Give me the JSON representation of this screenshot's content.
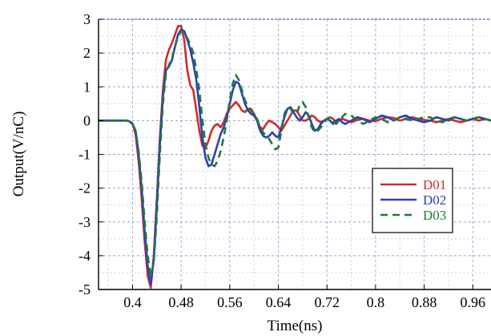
{
  "chart_data": {
    "type": "line",
    "title": "",
    "xlabel": "Time(ns)",
    "ylabel": "Output(V/nC)",
    "xlim": [
      0.344,
      0.99
    ],
    "ylim": [
      -5,
      3
    ],
    "x_ticks": [
      0.4,
      0.48,
      0.56,
      0.64,
      0.72,
      0.8,
      0.88,
      0.96
    ],
    "x_tick_labels": [
      "0.4",
      "0.48",
      "0.56",
      "0.64",
      "0.72",
      "0.8",
      "0.88",
      "0.96"
    ],
    "y_ticks": [
      3,
      2,
      1,
      0,
      -1,
      -2,
      -3,
      -4,
      -5
    ],
    "y_tick_labels": [
      "3",
      "2",
      "1",
      "0",
      "-1",
      "-2",
      "-3",
      "-4",
      "-5"
    ],
    "grid": true,
    "legend_position": "lower-right",
    "series": [
      {
        "name": "D01",
        "color": "#d42a2a",
        "dash": "solid",
        "x": [
          0.344,
          0.38,
          0.39,
          0.395,
          0.4,
          0.405,
          0.41,
          0.415,
          0.42,
          0.425,
          0.43,
          0.435,
          0.44,
          0.445,
          0.45,
          0.455,
          0.46,
          0.465,
          0.47,
          0.475,
          0.48,
          0.485,
          0.49,
          0.495,
          0.5,
          0.505,
          0.51,
          0.515,
          0.52,
          0.525,
          0.53,
          0.535,
          0.54,
          0.545,
          0.55,
          0.555,
          0.56,
          0.565,
          0.57,
          0.575,
          0.58,
          0.585,
          0.59,
          0.595,
          0.6,
          0.605,
          0.61,
          0.615,
          0.62,
          0.625,
          0.63,
          0.635,
          0.64,
          0.645,
          0.65,
          0.655,
          0.66,
          0.665,
          0.67,
          0.675,
          0.68,
          0.685,
          0.69,
          0.695,
          0.7,
          0.705,
          0.71,
          0.715,
          0.72,
          0.725,
          0.73,
          0.735,
          0.74,
          0.745,
          0.75,
          0.76,
          0.77,
          0.78,
          0.79,
          0.8,
          0.81,
          0.82,
          0.83,
          0.84,
          0.85,
          0.86,
          0.87,
          0.88,
          0.89,
          0.9,
          0.91,
          0.92,
          0.93,
          0.94,
          0.95,
          0.96,
          0.97,
          0.98,
          0.99
        ],
        "y": [
          0,
          0,
          0,
          -0.02,
          -0.1,
          -0.4,
          -1.2,
          -2.3,
          -3.6,
          -4.6,
          -4.95,
          -4.0,
          -2.3,
          -0.5,
          0.9,
          1.8,
          2.1,
          2.3,
          2.55,
          2.8,
          2.8,
          2.4,
          1.5,
          1.05,
          0.9,
          0.3,
          -0.3,
          -0.75,
          -0.8,
          -0.6,
          -0.3,
          -0.15,
          -0.1,
          -0.2,
          -0.05,
          0.2,
          0.35,
          0.45,
          0.55,
          0.45,
          0.3,
          0.25,
          0.35,
          0.35,
          0.2,
          0.0,
          -0.2,
          -0.25,
          -0.1,
          0.0,
          -0.05,
          -0.1,
          -0.2,
          -0.3,
          -0.15,
          0.0,
          0.15,
          0.3,
          0.3,
          0.15,
          0.0,
          0.0,
          0.05,
          0.15,
          0.1,
          0.0,
          -0.05,
          0.0,
          0.05,
          0.1,
          0.05,
          -0.05,
          0.0,
          0.05,
          0.02,
          -0.05,
          0.02,
          0.05,
          0.0,
          -0.02,
          0.05,
          0.1,
          0.08,
          0.0,
          0.05,
          0.1,
          0.05,
          0.02,
          0.0,
          -0.05,
          0.0,
          0.05,
          0.0,
          -0.05,
          0.0,
          0.05,
          0.0,
          0.05,
          0.0
        ]
      },
      {
        "name": "D02",
        "color": "#2a42b4",
        "dash": "solid",
        "x": [
          0.344,
          0.38,
          0.39,
          0.395,
          0.4,
          0.405,
          0.41,
          0.415,
          0.42,
          0.425,
          0.43,
          0.435,
          0.44,
          0.445,
          0.45,
          0.455,
          0.46,
          0.465,
          0.47,
          0.475,
          0.48,
          0.485,
          0.49,
          0.495,
          0.5,
          0.505,
          0.51,
          0.515,
          0.52,
          0.525,
          0.53,
          0.535,
          0.54,
          0.545,
          0.55,
          0.555,
          0.56,
          0.565,
          0.57,
          0.575,
          0.58,
          0.585,
          0.59,
          0.595,
          0.6,
          0.605,
          0.61,
          0.615,
          0.62,
          0.625,
          0.63,
          0.635,
          0.64,
          0.645,
          0.65,
          0.655,
          0.66,
          0.665,
          0.67,
          0.675,
          0.68,
          0.685,
          0.69,
          0.695,
          0.7,
          0.705,
          0.71,
          0.715,
          0.72,
          0.725,
          0.73,
          0.735,
          0.74,
          0.745,
          0.75,
          0.76,
          0.77,
          0.78,
          0.79,
          0.8,
          0.81,
          0.82,
          0.83,
          0.84,
          0.85,
          0.86,
          0.87,
          0.88,
          0.89,
          0.9,
          0.91,
          0.92,
          0.93,
          0.94,
          0.95,
          0.96,
          0.97,
          0.98,
          0.99
        ],
        "y": [
          0,
          0,
          0,
          -0.02,
          -0.1,
          -0.3,
          -1.0,
          -2.0,
          -3.3,
          -4.3,
          -4.85,
          -4.1,
          -2.5,
          -0.7,
          0.7,
          1.5,
          1.6,
          1.8,
          2.2,
          2.55,
          2.7,
          2.65,
          2.4,
          2.1,
          1.7,
          1.2,
          0.4,
          -0.5,
          -1.1,
          -1.35,
          -1.3,
          -1.0,
          -0.7,
          -0.4,
          -0.2,
          0.1,
          0.5,
          0.9,
          1.15,
          1.1,
          0.8,
          0.5,
          0.3,
          0.2,
          0.15,
          0.0,
          -0.3,
          -0.45,
          -0.5,
          -0.45,
          -0.35,
          -0.45,
          -0.5,
          -0.2,
          0.1,
          0.35,
          0.4,
          0.25,
          0.1,
          0.0,
          0.1,
          0.25,
          0.15,
          -0.1,
          -0.3,
          -0.25,
          -0.1,
          0.0,
          0.05,
          0.0,
          -0.1,
          0.0,
          0.05,
          -0.05,
          -0.1,
          0.0,
          0.1,
          0.05,
          -0.05,
          0.05,
          0.15,
          0.1,
          0.0,
          0.1,
          0.15,
          0.05,
          0.0,
          -0.05,
          0.0,
          0.1,
          0.05,
          0.0,
          0.1,
          0.05,
          0.0,
          0.05,
          0.1,
          0.05,
          0.0
        ]
      },
      {
        "name": "D03",
        "color": "#1f7a3a",
        "dash": "dashed",
        "x": [
          0.344,
          0.38,
          0.39,
          0.395,
          0.4,
          0.405,
          0.41,
          0.415,
          0.42,
          0.425,
          0.43,
          0.435,
          0.44,
          0.445,
          0.45,
          0.455,
          0.46,
          0.465,
          0.47,
          0.475,
          0.48,
          0.485,
          0.49,
          0.495,
          0.5,
          0.505,
          0.51,
          0.515,
          0.52,
          0.525,
          0.53,
          0.535,
          0.54,
          0.545,
          0.55,
          0.555,
          0.56,
          0.565,
          0.57,
          0.575,
          0.58,
          0.585,
          0.59,
          0.595,
          0.6,
          0.605,
          0.61,
          0.615,
          0.62,
          0.625,
          0.63,
          0.635,
          0.64,
          0.645,
          0.65,
          0.655,
          0.66,
          0.665,
          0.67,
          0.675,
          0.68,
          0.685,
          0.69,
          0.695,
          0.7,
          0.705,
          0.71,
          0.715,
          0.72,
          0.725,
          0.73,
          0.735,
          0.74,
          0.745,
          0.75,
          0.76,
          0.77,
          0.78,
          0.79,
          0.8,
          0.81,
          0.82,
          0.83,
          0.84,
          0.85,
          0.86,
          0.87,
          0.88,
          0.89,
          0.9,
          0.91,
          0.92,
          0.93,
          0.94,
          0.95,
          0.96,
          0.97,
          0.98,
          0.99
        ],
        "y": [
          0,
          0,
          0,
          -0.02,
          -0.1,
          -0.3,
          -0.9,
          -1.8,
          -3.0,
          -4.0,
          -4.6,
          -4.2,
          -2.8,
          -1.0,
          0.5,
          1.4,
          1.65,
          1.85,
          2.2,
          2.5,
          2.65,
          2.6,
          2.45,
          2.25,
          2.0,
          1.5,
          0.9,
          0.0,
          -0.7,
          -1.1,
          -1.3,
          -1.35,
          -1.2,
          -0.9,
          -0.5,
          0.0,
          0.6,
          1.1,
          1.35,
          1.2,
          0.9,
          0.6,
          0.4,
          0.3,
          0.2,
          0.05,
          -0.2,
          -0.35,
          -0.45,
          -0.55,
          -0.7,
          -0.85,
          -0.8,
          -0.3,
          0.2,
          0.4,
          0.35,
          0.2,
          0.2,
          0.45,
          0.55,
          0.4,
          0.1,
          -0.2,
          -0.35,
          -0.3,
          -0.2,
          -0.05,
          0.05,
          0.1,
          0.0,
          -0.1,
          0.0,
          0.1,
          0.2,
          0.15,
          0.0,
          -0.1,
          0.0,
          0.1,
          0.05,
          -0.05,
          0.0,
          0.1,
          0.05,
          0.0,
          0.05,
          0.1,
          0.1,
          0.0,
          -0.05,
          0.05,
          0.1,
          0.05,
          0.0,
          0.05,
          0.1,
          0.05,
          0.0
        ]
      }
    ]
  }
}
